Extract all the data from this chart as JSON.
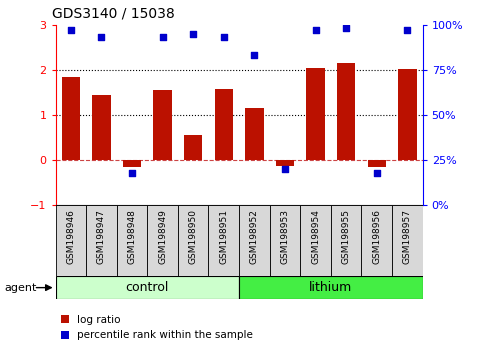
{
  "title": "GDS3140 / 15038",
  "samples": [
    "GSM198946",
    "GSM198947",
    "GSM198948",
    "GSM198949",
    "GSM198950",
    "GSM198951",
    "GSM198952",
    "GSM198953",
    "GSM198954",
    "GSM198955",
    "GSM198956",
    "GSM198957"
  ],
  "log_ratio": [
    1.85,
    1.45,
    -0.15,
    1.55,
    0.55,
    1.58,
    1.15,
    -0.12,
    2.05,
    2.15,
    -0.15,
    2.02
  ],
  "percentile_rank": [
    97,
    93,
    18,
    93,
    95,
    93,
    83,
    20,
    97,
    98,
    18,
    97
  ],
  "groups": [
    {
      "label": "control",
      "start": 0,
      "end": 6,
      "color": "#ccffcc"
    },
    {
      "label": "lithium",
      "start": 6,
      "end": 12,
      "color": "#44ee44"
    }
  ],
  "group_label": "agent",
  "bar_color": "#bb1100",
  "point_color": "#0000cc",
  "ylim_left": [
    -1,
    3
  ],
  "ylim_right": [
    0,
    100
  ],
  "yticks_left": [
    -1,
    0,
    1,
    2,
    3
  ],
  "yticks_right": [
    0,
    25,
    50,
    75,
    100
  ],
  "ytick_labels_right": [
    "0%",
    "25%",
    "50%",
    "75%",
    "100%"
  ],
  "background_color": "#ffffff"
}
